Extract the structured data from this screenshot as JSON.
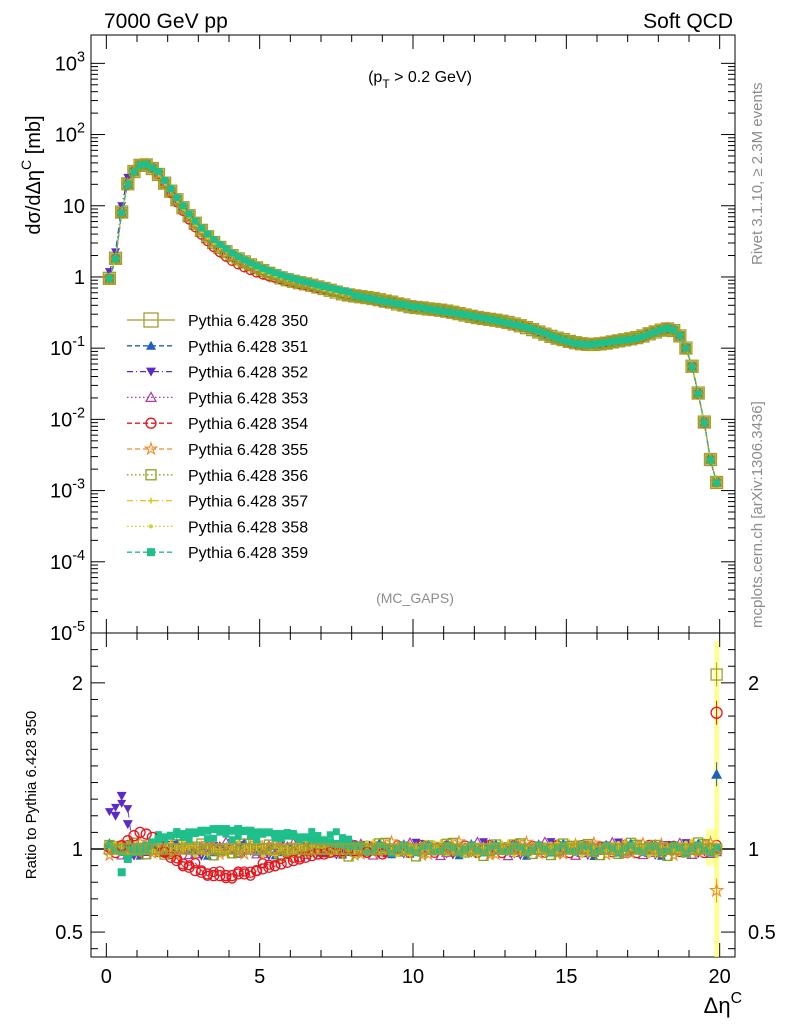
{
  "header": {
    "energy_label": "7000 GeV pp",
    "process_label": "Soft QCD",
    "cut_label": "(p_T > 0.2 GeV)",
    "analysis_tag": "(MC_GAPS)",
    "side_text_top": "Rivet 3.1.10, ≥ 2.3M events",
    "side_text_bottom": "mcplots.cern.ch [arXiv:1306.3436]"
  },
  "chart_data": [
    {
      "type": "line",
      "panel": "main",
      "ylabel": "dσ/dΔη^C [mb]",
      "xlabel": "",
      "yscale": "log",
      "xlim": [
        -0.5,
        20.5
      ],
      "ylim": [
        1e-05,
        2500
      ],
      "ytick_labels": [
        "10^-5",
        "10^-4",
        "10^-3",
        "10^-2",
        "10^-1",
        "1",
        "10",
        "10^2",
        "10^3"
      ],
      "legend_position": "left-middle",
      "x": [
        0.1,
        0.3,
        0.5,
        0.7,
        0.9,
        1.1,
        1.3,
        1.5,
        1.7,
        1.9,
        2.1,
        2.3,
        2.5,
        2.7,
        2.9,
        3.1,
        3.3,
        3.5,
        3.7,
        3.9,
        4.1,
        4.3,
        4.5,
        4.7,
        4.9,
        5.1,
        5.3,
        5.5,
        5.7,
        5.9,
        6.1,
        6.3,
        6.5,
        6.7,
        6.9,
        7.1,
        7.3,
        7.5,
        7.7,
        7.9,
        8.1,
        8.3,
        8.5,
        8.7,
        8.9,
        9.1,
        9.3,
        9.5,
        9.7,
        9.9,
        10.1,
        10.3,
        10.5,
        10.7,
        10.9,
        11.1,
        11.3,
        11.5,
        11.7,
        11.9,
        12.1,
        12.3,
        12.5,
        12.7,
        12.9,
        13.1,
        13.3,
        13.5,
        13.7,
        13.9,
        14.1,
        14.3,
        14.5,
        14.7,
        14.9,
        15.1,
        15.3,
        15.5,
        15.7,
        15.9,
        16.1,
        16.3,
        16.5,
        16.7,
        16.9,
        17.1,
        17.3,
        17.5,
        17.7,
        17.9,
        18.1,
        18.3,
        18.5,
        18.7,
        18.9,
        19.1,
        19.3,
        19.5,
        19.7,
        19.9
      ],
      "series": [
        {
          "name": "Pythia 6.428 350",
          "color": "#a59e2f",
          "marker": "open-square",
          "dash": "solid",
          "values": [
            0.95,
            1.8,
            8,
            20,
            30,
            37,
            38,
            34,
            28,
            21,
            16,
            12,
            9.2,
            7.1,
            5.6,
            4.5,
            3.7,
            3.1,
            2.65,
            2.3,
            2.0,
            1.78,
            1.6,
            1.45,
            1.32,
            1.22,
            1.13,
            1.06,
            0.99,
            0.93,
            0.88,
            0.83,
            0.79,
            0.75,
            0.71,
            0.68,
            0.65,
            0.62,
            0.59,
            0.57,
            0.55,
            0.53,
            0.51,
            0.49,
            0.47,
            0.45,
            0.44,
            0.42,
            0.41,
            0.39,
            0.38,
            0.37,
            0.355,
            0.345,
            0.335,
            0.325,
            0.315,
            0.305,
            0.295,
            0.285,
            0.275,
            0.265,
            0.255,
            0.245,
            0.235,
            0.225,
            0.215,
            0.205,
            0.195,
            0.185,
            0.172,
            0.16,
            0.148,
            0.138,
            0.13,
            0.122,
            0.117,
            0.114,
            0.113,
            0.114,
            0.117,
            0.12,
            0.124,
            0.127,
            0.13,
            0.133,
            0.138,
            0.146,
            0.158,
            0.17,
            0.182,
            0.19,
            0.18,
            0.15,
            0.1,
            0.055,
            0.023,
            0.009,
            0.0027,
            0.0013
          ]
        },
        {
          "name": "Pythia 6.428 351",
          "color": "#1f5fbf",
          "marker": "filled-triangle-up",
          "dash": "dashed"
        },
        {
          "name": "Pythia 6.428 352",
          "color": "#5b2bc9",
          "marker": "filled-triangle-down",
          "dash": "dash-dot"
        },
        {
          "name": "Pythia 6.428 353",
          "color": "#b23aa8",
          "marker": "open-triangle-up",
          "dash": "dotted"
        },
        {
          "name": "Pythia 6.428 354",
          "color": "#e8141d",
          "marker": "open-circle",
          "dash": "dashed"
        },
        {
          "name": "Pythia 6.428 355",
          "color": "#f08c2a",
          "marker": "open-star",
          "dash": "dashed"
        },
        {
          "name": "Pythia 6.428 356",
          "color": "#8ca21e",
          "marker": "open-square",
          "dash": "dotted"
        },
        {
          "name": "Pythia 6.428 357",
          "color": "#e6c21a",
          "marker": "small-cross",
          "dash": "dash-dot"
        },
        {
          "name": "Pythia 6.428 358",
          "color": "#c8d42a",
          "marker": "small-dot",
          "dash": "dotted"
        },
        {
          "name": "Pythia 6.428 359",
          "color": "#1fbf8c",
          "marker": "filled-square",
          "dash": "dashed"
        }
      ]
    },
    {
      "type": "line",
      "panel": "ratio",
      "ylabel": "Ratio to Pythia 6.428 350",
      "xlabel": "Δη^C",
      "xlim": [
        -0.5,
        20.5
      ],
      "ylim": [
        0.35,
        2.3
      ],
      "xtick_labels": [
        "0",
        "5",
        "10",
        "15",
        "20"
      ],
      "ytick_labels": [
        "0.5",
        "1",
        "2"
      ],
      "reference_line": 1.0,
      "series": [
        {
          "name": "Pythia 6.428 354",
          "x": [
            0.5,
            0.7,
            0.9,
            1.1,
            1.3,
            1.5,
            1.7,
            1.9,
            2.1,
            2.3,
            2.5,
            2.7,
            2.9,
            3.1,
            3.3,
            3.5,
            3.7,
            3.9,
            4.1,
            4.3,
            4.5,
            4.7,
            4.9,
            5.1,
            5.3,
            5.5,
            5.7,
            5.9,
            6.1,
            6.3,
            6.5,
            6.7,
            6.9,
            7.1,
            7.3,
            7.5,
            7.7,
            7.9,
            8.1,
            8.5,
            9.0
          ],
          "values": [
            1.02,
            1.05,
            1.08,
            1.1,
            1.09,
            1.07,
            1.03,
            0.98,
            0.95,
            0.93,
            0.91,
            0.89,
            0.87,
            0.86,
            0.85,
            0.84,
            0.84,
            0.84,
            0.84,
            0.85,
            0.85,
            0.86,
            0.87,
            0.88,
            0.89,
            0.9,
            0.91,
            0.92,
            0.93,
            0.94,
            0.95,
            0.96,
            0.97,
            0.97,
            0.98,
            0.99,
            0.99,
            1.0,
            0.99,
            0.98,
            0.97
          ]
        },
        {
          "name": "Pythia 6.428 359",
          "x": [
            0.5,
            0.7,
            0.9,
            1.1,
            1.3,
            1.5,
            1.7,
            1.9,
            2.1,
            2.3,
            2.5,
            2.7,
            2.9,
            3.1,
            3.3,
            3.5,
            3.7,
            3.9,
            4.1,
            4.3,
            4.5,
            4.7,
            4.9,
            5.1,
            5.3,
            5.5,
            5.7,
            5.9,
            6.1,
            6.3,
            6.5,
            6.7,
            6.9,
            7.1,
            7.3,
            7.5,
            7.7,
            7.9,
            8.1
          ],
          "values": [
            0.86,
            0.94,
            0.98,
            1.0,
            1.02,
            1.04,
            1.06,
            1.07,
            1.08,
            1.09,
            1.09,
            1.1,
            1.1,
            1.11,
            1.11,
            1.12,
            1.12,
            1.12,
            1.11,
            1.12,
            1.11,
            1.11,
            1.1,
            1.1,
            1.1,
            1.09,
            1.09,
            1.08,
            1.08,
            1.07,
            1.07,
            1.06,
            1.05,
            1.05,
            1.04,
            1.03,
            1.03,
            1.02,
            1.02
          ]
        },
        {
          "name": "Pythia 6.428 352",
          "x": [
            0.3,
            0.5,
            0.7
          ],
          "values": [
            1.2,
            1.32,
            1.15
          ]
        }
      ],
      "right_edge_values": {
        "Pythia 6.428 350": 2.05,
        "Pythia 6.428 354": 1.82,
        "Pythia 6.428 351": 1.45,
        "Pythia 6.428 355": 0.75
      }
    }
  ]
}
